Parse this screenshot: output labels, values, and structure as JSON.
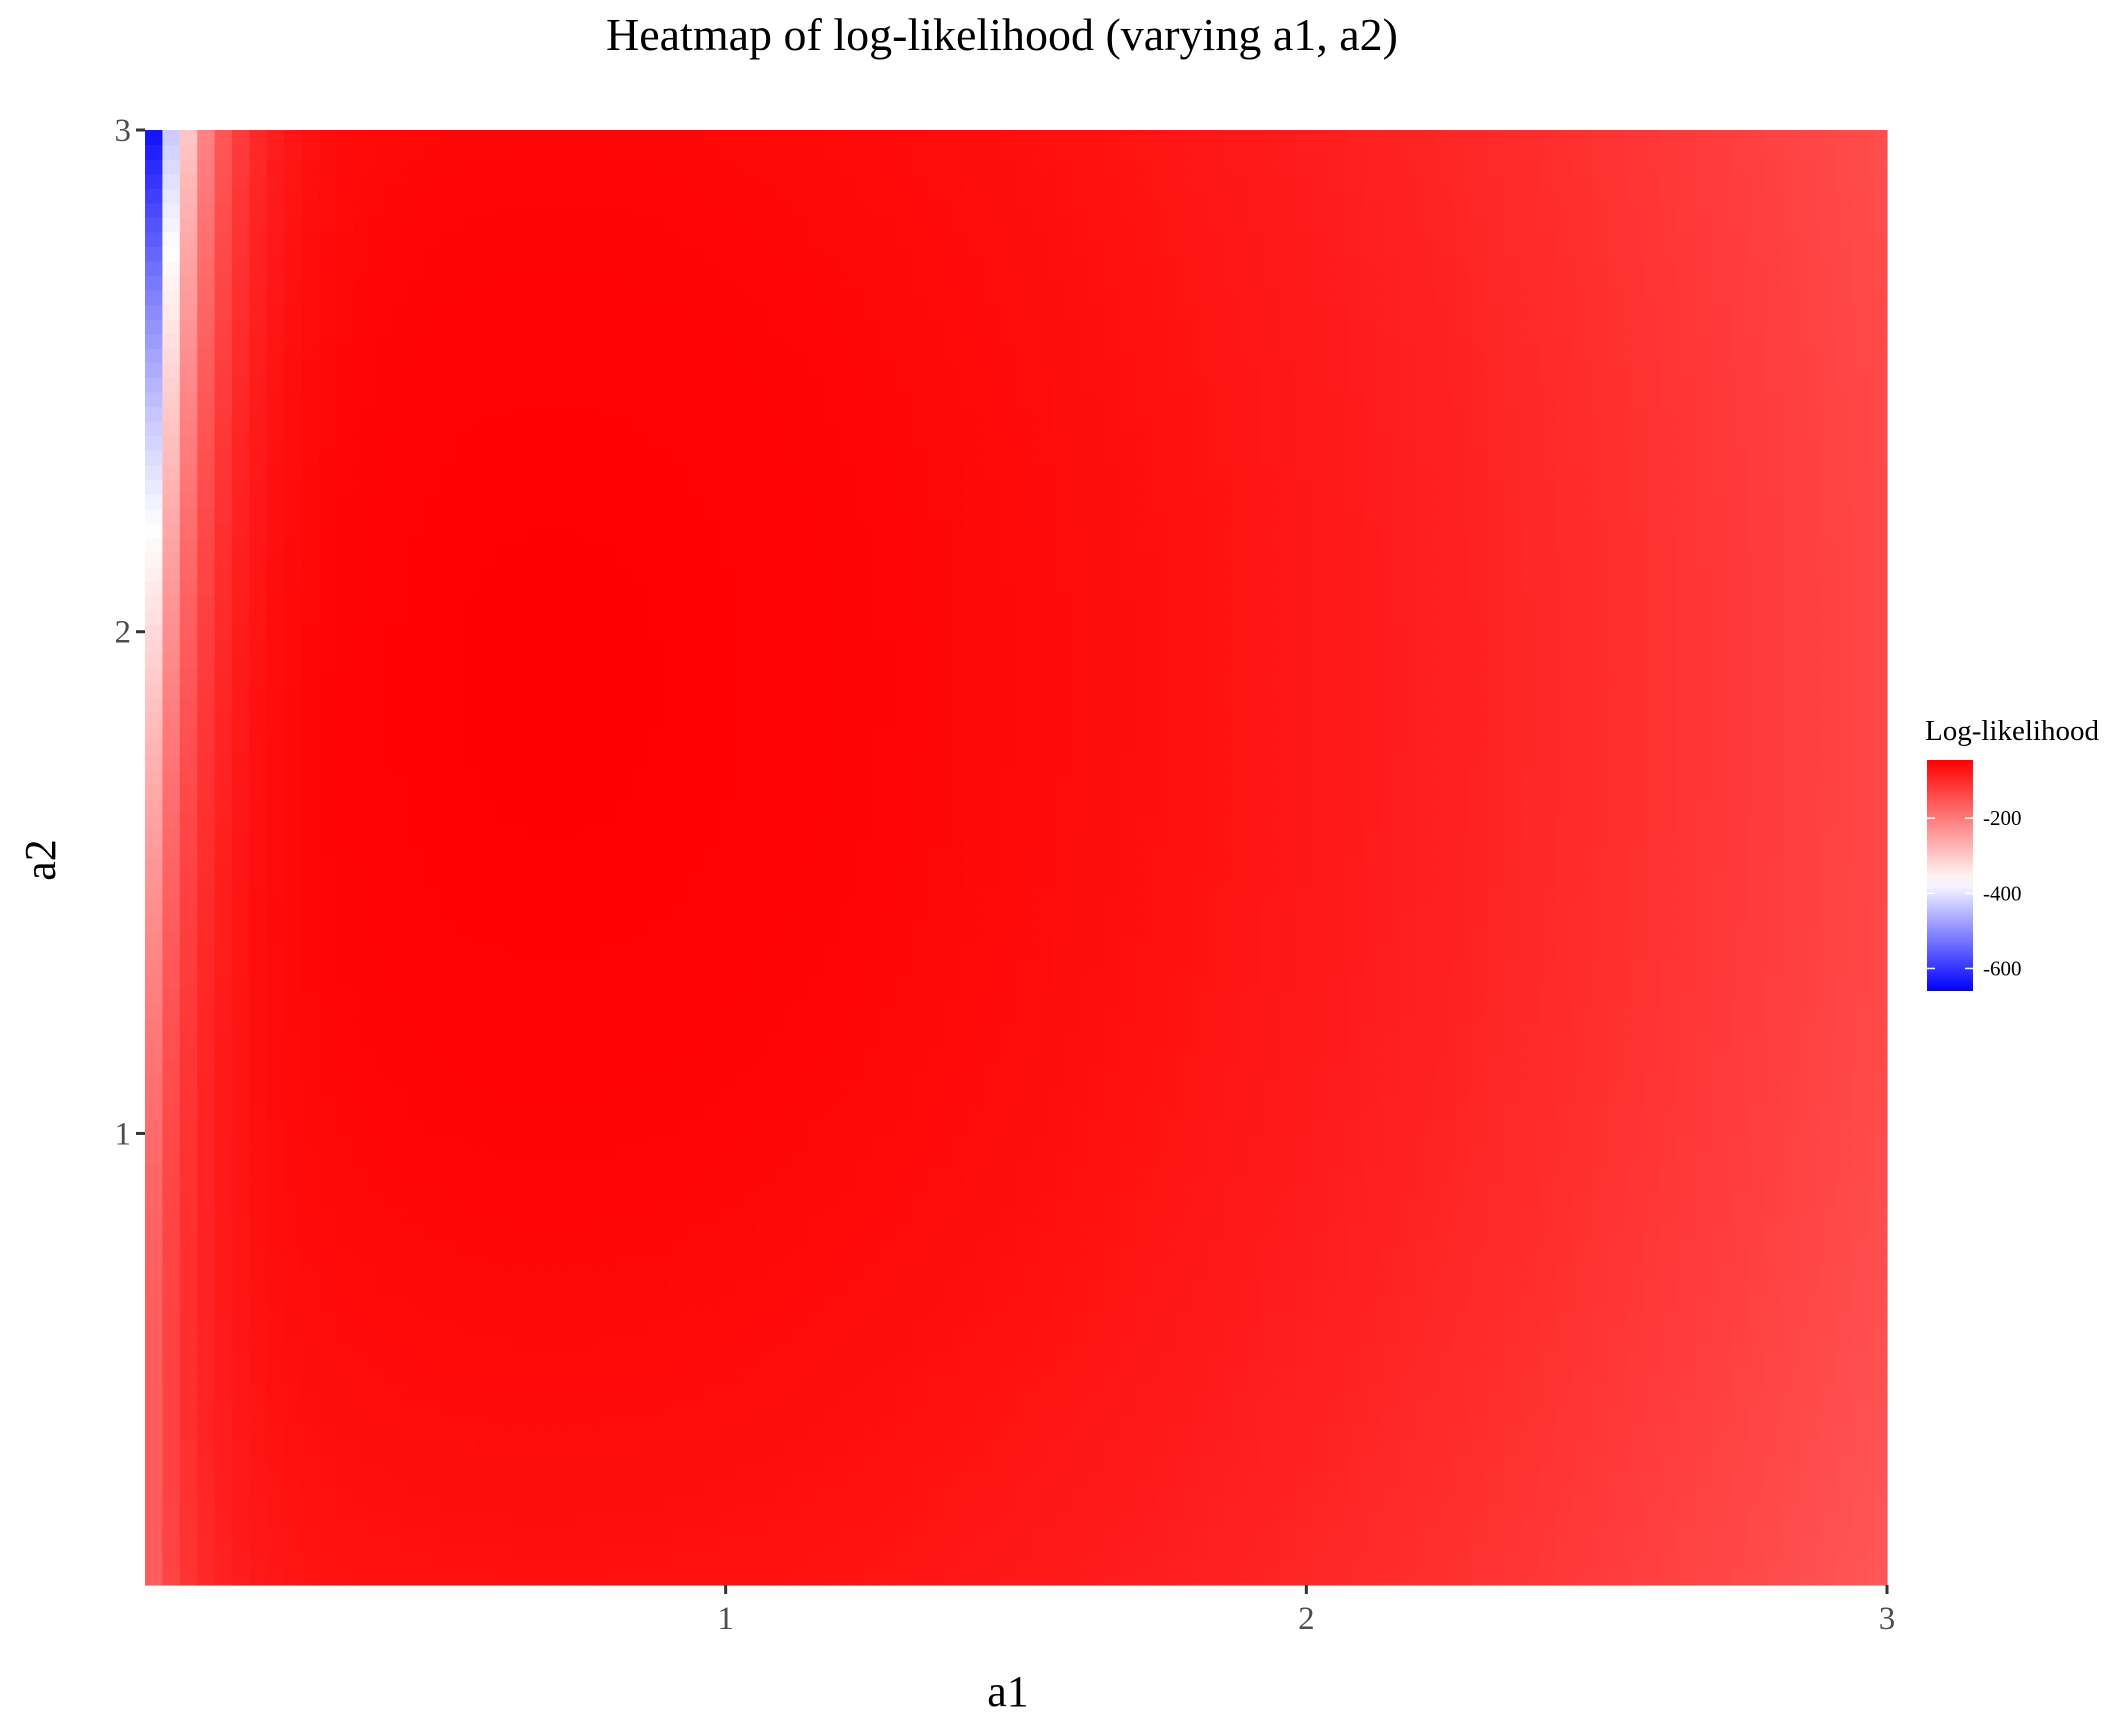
{
  "chart_data": {
    "type": "heatmap",
    "title": "Heatmap of log-likelihood (varying a1, a2)",
    "xlabel": "a1",
    "ylabel": "a2",
    "xlim": [
      0.0,
      3.0
    ],
    "ylim": [
      0.1,
      3.0
    ],
    "x_ticks": [
      1,
      2,
      3
    ],
    "y_ticks": [
      1,
      2,
      3
    ],
    "grid_resolution": 100,
    "color_scale": {
      "low": "#0000FF",
      "mid": "#FFFFFF",
      "high": "#FF0000",
      "midpoint": -370,
      "limits": [
        -660,
        -45
      ]
    },
    "value_range": [
      -660,
      -45
    ],
    "optimum": {
      "a1": 0.7,
      "a2": 1.9,
      "value": -45
    },
    "legend": {
      "title": "Log-likelihood",
      "breaks": [
        -200,
        -400,
        -600
      ],
      "position": "right"
    }
  }
}
